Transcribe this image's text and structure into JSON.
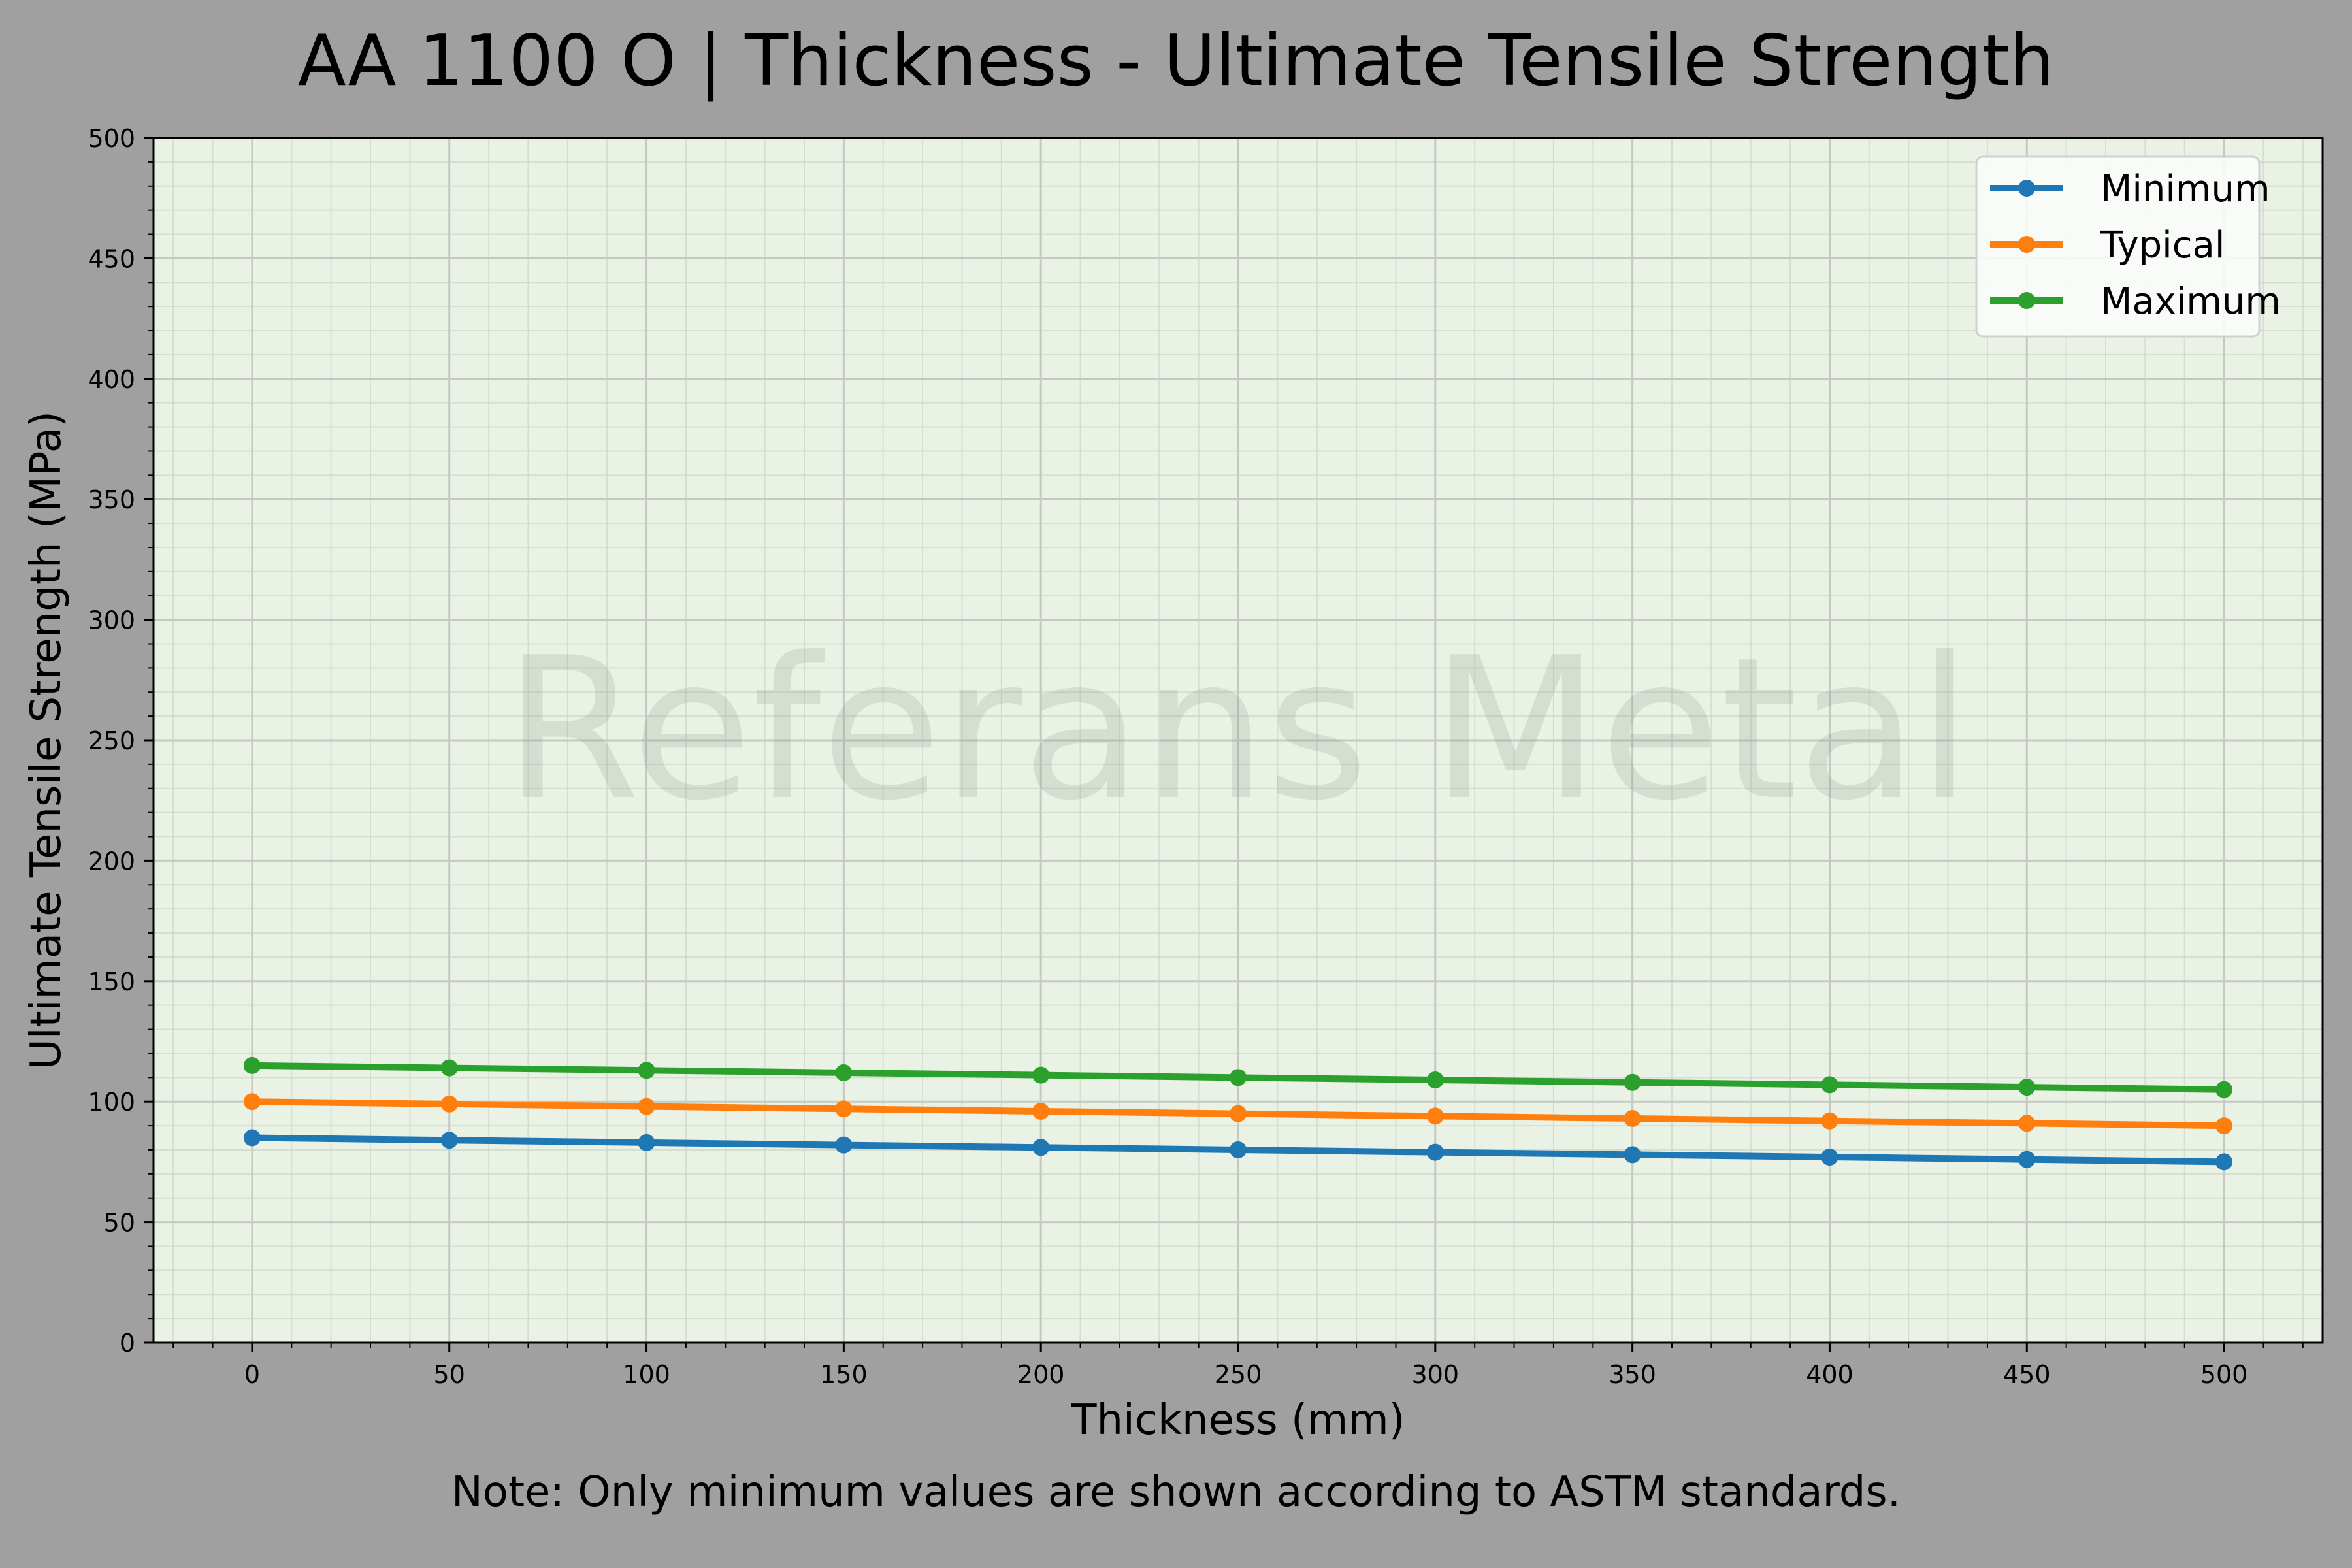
{
  "chart_data": {
    "type": "line",
    "title": "AA 1100 O | Thickness - Ultimate Tensile Strength",
    "xlabel": "Thickness (mm)",
    "ylabel": "Ultimate Tensile Strength (MPa)",
    "x": [
      0,
      50,
      100,
      150,
      200,
      250,
      300,
      350,
      400,
      450,
      500
    ],
    "series": [
      {
        "name": "Minimum",
        "color": "#1f77b4",
        "values": [
          85,
          84,
          83,
          82,
          81,
          80,
          79,
          78,
          77,
          76,
          75
        ]
      },
      {
        "name": "Typical",
        "color": "#ff7f0e",
        "values": [
          100,
          99,
          98,
          97,
          96,
          95,
          94,
          93,
          92,
          91,
          90
        ]
      },
      {
        "name": "Maximum",
        "color": "#2ca02c",
        "values": [
          115,
          114,
          113,
          112,
          111,
          110,
          109,
          108,
          107,
          106,
          105
        ]
      }
    ],
    "xlim": [
      -25,
      525
    ],
    "ylim": [
      0,
      500
    ],
    "xticks": [
      0,
      50,
      100,
      150,
      200,
      250,
      300,
      350,
      400,
      450,
      500
    ],
    "yticks": [
      0,
      50,
      100,
      150,
      200,
      250,
      300,
      350,
      400,
      450,
      500
    ],
    "grid": true,
    "minor_grid": true,
    "legend_position": "upper right",
    "watermark": "Referans Metal",
    "note": "Note: Only minimum values are shown according to ASTM standards."
  },
  "colors": {
    "figure_bg": "#a0a0a0",
    "plot_bg": "#eaf2e6"
  }
}
